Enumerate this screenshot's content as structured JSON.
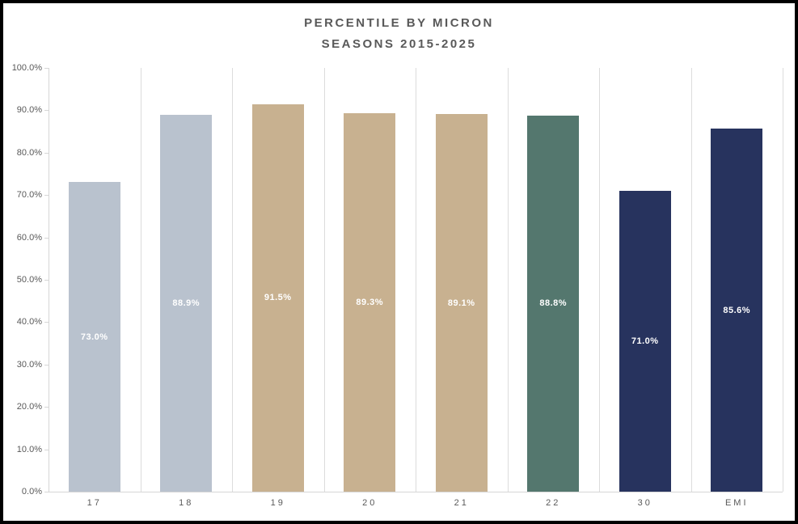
{
  "title": {
    "line1": "PERCENTILE BY MICRON",
    "line2": "SEASONS 2015-2025"
  },
  "chart_data": {
    "type": "bar",
    "title": "PERCENTILE BY MICRON SEASONS 2015-2025",
    "xlabel": "",
    "ylabel": "",
    "categories": [
      "17",
      "18",
      "19",
      "20",
      "21",
      "22",
      "30",
      "EMI"
    ],
    "values": [
      73.0,
      88.9,
      91.5,
      89.3,
      89.1,
      88.8,
      71.0,
      85.6
    ],
    "value_labels": [
      "73.0%",
      "88.9%",
      "91.5%",
      "89.3%",
      "89.1%",
      "88.8%",
      "71.0%",
      "85.6%"
    ],
    "bar_colors": [
      "#b9c2ce",
      "#b9c2ce",
      "#c8b190",
      "#c8b190",
      "#c8b190",
      "#54776e",
      "#27335e",
      "#27335e"
    ],
    "ylim": [
      0,
      100
    ],
    "ytick_step": 10,
    "ytick_labels": [
      "0.0%",
      "10.0%",
      "20.0%",
      "30.0%",
      "40.0%",
      "50.0%",
      "60.0%",
      "70.0%",
      "80.0%",
      "90.0%",
      "100.0%"
    ],
    "grid": "vertical category separators only",
    "legend": "none",
    "value_label_position": "inside-center",
    "value_label_color": "#ffffff"
  },
  "colors": {
    "frame_border": "#000000",
    "background": "#ffffff",
    "title_text": "#595959",
    "axis_text": "#595959",
    "axis_line": "#d6d6d6",
    "gridline": "#dcdcdc",
    "bar_blue_gray": "#b9c2ce",
    "bar_tan": "#c8b190",
    "bar_green": "#54776e",
    "bar_navy": "#27335e"
  }
}
